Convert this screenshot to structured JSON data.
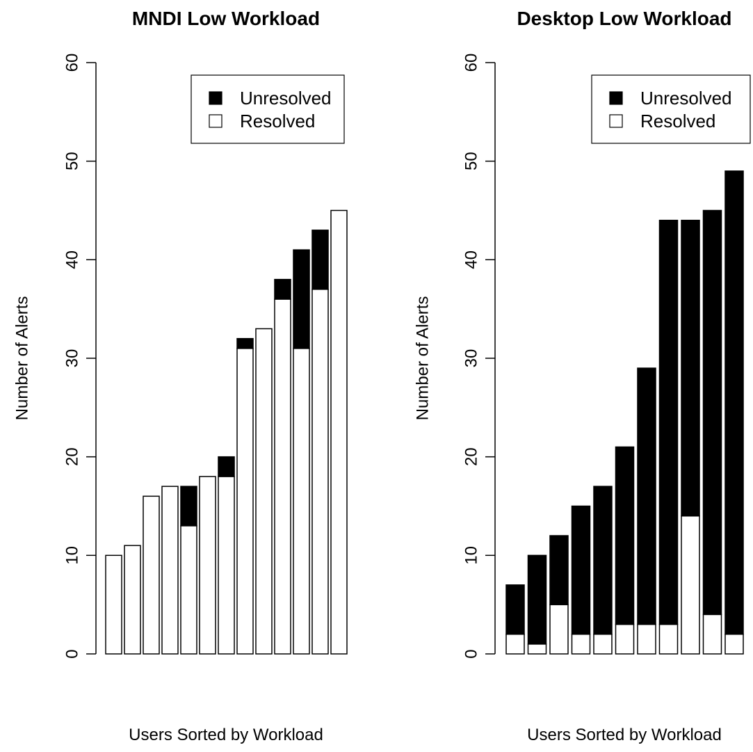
{
  "chart_data": [
    {
      "type": "bar",
      "stacked": true,
      "title": "MNDI Low Workload",
      "xlabel": "Users Sorted by Workload",
      "ylabel": "Number of Alerts",
      "ylim": [
        0,
        60
      ],
      "yticks": [
        "0",
        "10",
        "20",
        "30",
        "40",
        "50",
        "60"
      ],
      "grid": false,
      "legend": {
        "position": "top-right",
        "entries": [
          {
            "label": "Unresolved",
            "color": "#000000"
          },
          {
            "label": "Resolved",
            "color": "#ffffff"
          }
        ]
      },
      "series": [
        {
          "name": "Resolved",
          "color": "#ffffff",
          "values": [
            10,
            11,
            16,
            17,
            13,
            18,
            18,
            31,
            33,
            36,
            31,
            37,
            45
          ]
        },
        {
          "name": "Unresolved",
          "color": "#000000",
          "values": [
            0,
            0,
            0,
            0,
            4,
            0,
            2,
            1,
            0,
            2,
            10,
            6,
            0
          ]
        }
      ]
    },
    {
      "type": "bar",
      "stacked": true,
      "title": "Desktop Low Workload",
      "xlabel": "Users Sorted by Workload",
      "ylabel": "Number of Alerts",
      "ylim": [
        0,
        60
      ],
      "yticks": [
        "0",
        "10",
        "20",
        "30",
        "40",
        "50",
        "60"
      ],
      "grid": false,
      "legend": {
        "position": "top-right",
        "entries": [
          {
            "label": "Unresolved",
            "color": "#000000"
          },
          {
            "label": "Resolved",
            "color": "#ffffff"
          }
        ]
      },
      "series": [
        {
          "name": "Resolved",
          "color": "#ffffff",
          "values": [
            2,
            1,
            5,
            2,
            2,
            3,
            3,
            3,
            14,
            4,
            2
          ]
        },
        {
          "name": "Unresolved",
          "color": "#000000",
          "values": [
            5,
            9,
            7,
            13,
            15,
            18,
            26,
            41,
            30,
            41,
            47
          ]
        }
      ]
    }
  ]
}
